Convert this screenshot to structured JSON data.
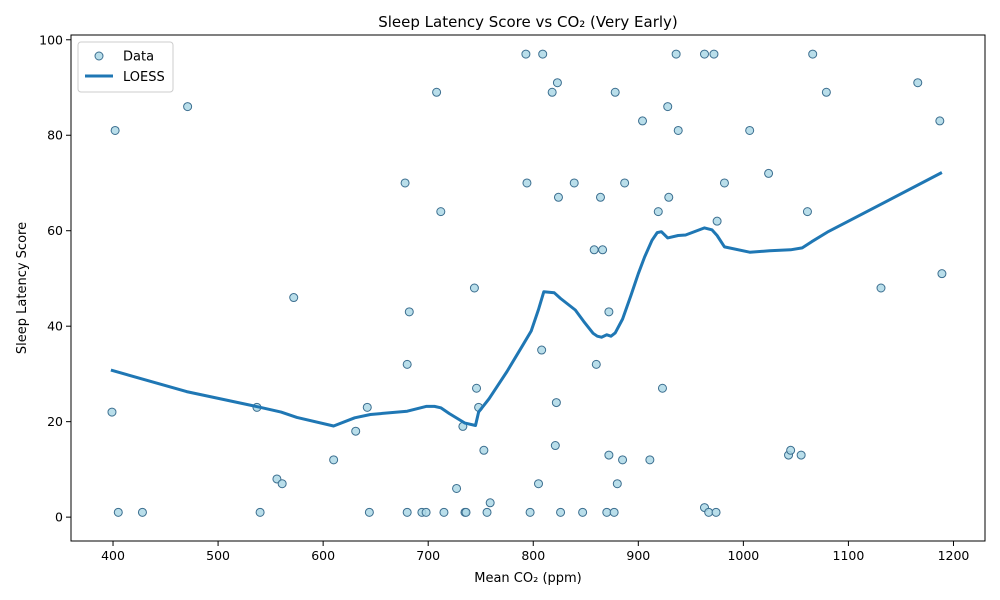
{
  "chart_data": {
    "type": "scatter",
    "title": "Sleep Latency Score vs CO₂ (Very Early)",
    "xlabel": "Mean CO₂ (ppm)",
    "ylabel": "Sleep Latency Score",
    "xlim": [
      360,
      1230
    ],
    "ylim": [
      -5,
      101
    ],
    "xticks": [
      400,
      500,
      600,
      700,
      800,
      900,
      1000,
      1100,
      1200
    ],
    "yticks": [
      0,
      20,
      40,
      60,
      80,
      100
    ],
    "grid": false,
    "legend_position": "top-left",
    "series": [
      {
        "name": "Data",
        "kind": "scatter",
        "color": "#add8e6",
        "edge_color": "#3b6e8f",
        "points": [
          [
            399,
            22
          ],
          [
            402,
            81
          ],
          [
            405,
            1
          ],
          [
            428,
            1
          ],
          [
            471,
            86
          ],
          [
            537,
            23
          ],
          [
            540,
            1
          ],
          [
            556,
            8
          ],
          [
            561,
            7
          ],
          [
            572,
            46
          ],
          [
            610,
            12
          ],
          [
            631,
            18
          ],
          [
            642,
            23
          ],
          [
            644,
            1
          ],
          [
            678,
            70
          ],
          [
            680,
            32
          ],
          [
            680,
            1
          ],
          [
            682,
            43
          ],
          [
            694,
            1
          ],
          [
            698,
            1
          ],
          [
            708,
            89
          ],
          [
            712,
            64
          ],
          [
            715,
            1
          ],
          [
            727,
            6
          ],
          [
            733,
            19
          ],
          [
            735,
            1
          ],
          [
            736,
            1
          ],
          [
            744,
            48
          ],
          [
            746,
            27
          ],
          [
            748,
            23
          ],
          [
            753,
            14
          ],
          [
            756,
            1
          ],
          [
            759,
            3
          ],
          [
            793,
            97
          ],
          [
            794,
            70
          ],
          [
            797,
            1
          ],
          [
            805,
            7
          ],
          [
            808,
            35
          ],
          [
            809,
            97
          ],
          [
            818,
            89
          ],
          [
            821,
            15
          ],
          [
            822,
            24
          ],
          [
            823,
            91
          ],
          [
            824,
            67
          ],
          [
            826,
            1
          ],
          [
            839,
            70
          ],
          [
            847,
            1
          ],
          [
            858,
            56
          ],
          [
            860,
            32
          ],
          [
            864,
            67
          ],
          [
            866,
            56
          ],
          [
            870,
            1
          ],
          [
            872,
            43
          ],
          [
            872,
            13
          ],
          [
            877,
            1
          ],
          [
            878,
            89
          ],
          [
            880,
            7
          ],
          [
            885,
            12
          ],
          [
            887,
            70
          ],
          [
            904,
            83
          ],
          [
            911,
            12
          ],
          [
            919,
            64
          ],
          [
            923,
            27
          ],
          [
            928,
            86
          ],
          [
            929,
            67
          ],
          [
            936,
            97
          ],
          [
            938,
            81
          ],
          [
            963,
            97
          ],
          [
            963,
            2
          ],
          [
            967,
            1
          ],
          [
            972,
            97
          ],
          [
            974,
            1
          ],
          [
            975,
            62
          ],
          [
            982,
            70
          ],
          [
            1006,
            81
          ],
          [
            1024,
            72
          ],
          [
            1043,
            13
          ],
          [
            1045,
            14
          ],
          [
            1055,
            13
          ],
          [
            1061,
            64
          ],
          [
            1066,
            97
          ],
          [
            1079,
            89
          ],
          [
            1131,
            48
          ],
          [
            1166,
            91
          ],
          [
            1187,
            83
          ],
          [
            1189,
            51
          ]
        ]
      },
      {
        "name": "LOESS",
        "kind": "line",
        "color": "#1f77b4",
        "points": [
          [
            398,
            30.8
          ],
          [
            470,
            26.3
          ],
          [
            540,
            23.0
          ],
          [
            560,
            22.0
          ],
          [
            575,
            20.9
          ],
          [
            610,
            19.1
          ],
          [
            630,
            20.8
          ],
          [
            645,
            21.5
          ],
          [
            680,
            22.2
          ],
          [
            698,
            23.2
          ],
          [
            706,
            23.2
          ],
          [
            712,
            22.9
          ],
          [
            720,
            21.7
          ],
          [
            735,
            19.7
          ],
          [
            745,
            19.2
          ],
          [
            748,
            22.0
          ],
          [
            758,
            24.8
          ],
          [
            775,
            30.5
          ],
          [
            790,
            36.0
          ],
          [
            798,
            39.0
          ],
          [
            805,
            43.5
          ],
          [
            810,
            47.2
          ],
          [
            820,
            47.0
          ],
          [
            826,
            45.8
          ],
          [
            840,
            43.4
          ],
          [
            848,
            41.0
          ],
          [
            857,
            38.5
          ],
          [
            861,
            37.9
          ],
          [
            865,
            37.7
          ],
          [
            870,
            38.2
          ],
          [
            874,
            37.9
          ],
          [
            878,
            38.6
          ],
          [
            885,
            41.5
          ],
          [
            893,
            46.5
          ],
          [
            900,
            51.0
          ],
          [
            906,
            54.5
          ],
          [
            913,
            58.0
          ],
          [
            918,
            59.6
          ],
          [
            922,
            59.8
          ],
          [
            928,
            58.5
          ],
          [
            938,
            59.0
          ],
          [
            945,
            59.1
          ],
          [
            963,
            60.6
          ],
          [
            970,
            60.2
          ],
          [
            975,
            59.0
          ],
          [
            982,
            56.6
          ],
          [
            1006,
            55.5
          ],
          [
            1025,
            55.8
          ],
          [
            1045,
            56.0
          ],
          [
            1056,
            56.4
          ],
          [
            1065,
            57.7
          ],
          [
            1080,
            59.7
          ],
          [
            1100,
            62.0
          ],
          [
            1189,
            72.2
          ]
        ]
      }
    ]
  }
}
